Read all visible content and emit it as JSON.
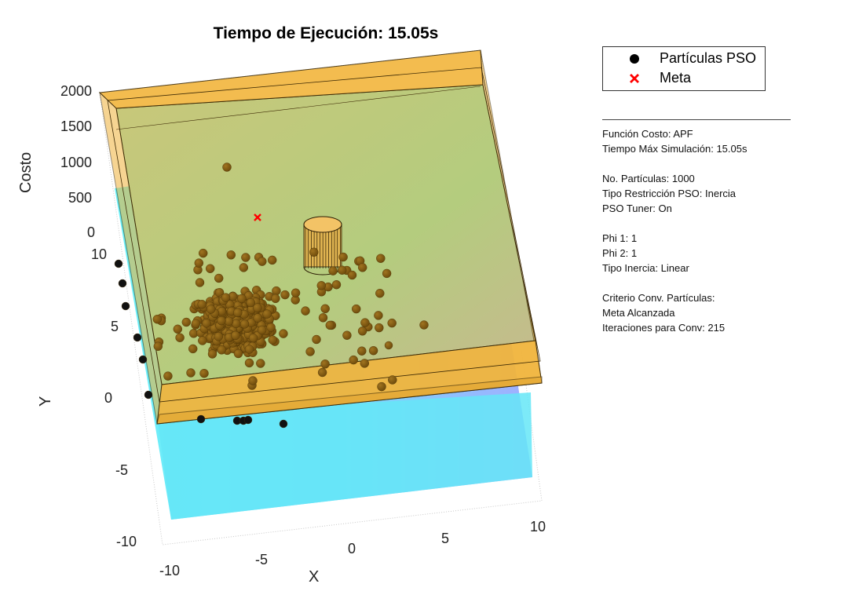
{
  "chart_data": {
    "type": "scatter",
    "title": "Tiempo de Ejecución: 15.05s",
    "xlabel": "X",
    "ylabel": "Y",
    "zlabel": "Costo",
    "x_ticks": [
      "-10",
      "-5",
      "0",
      "5",
      "10"
    ],
    "y_ticks": [
      "-10",
      "-5",
      "0",
      "5",
      "10"
    ],
    "z_ticks": [
      "0",
      "500",
      "1000",
      "1500",
      "2000"
    ],
    "xlim": [
      -10,
      10
    ],
    "ylim": [
      -10,
      10
    ],
    "zlim": [
      0,
      2000
    ],
    "grid": true,
    "legend_position": "top-right-outside",
    "legend": [
      {
        "label": "Partículas PSO",
        "marker": "circle",
        "color": "#000000"
      },
      {
        "label": "Meta",
        "marker": "x",
        "color": "#ff0000"
      }
    ],
    "goal": {
      "x": -2.5,
      "y": 8.8
    },
    "obstacle": {
      "type": "cylinder",
      "x": 0.8,
      "y": 8.0
    },
    "series": [
      {
        "name": "Partículas PSO",
        "count": 1000,
        "color": "#8a5f10"
      }
    ]
  },
  "info_panel": [
    "Función Costo: APF",
    "Tiempo Máx Simulación: 15.05s",
    "",
    "No. Partículas: 1000",
    "Tipo Restricción PSO: Inercia",
    "PSO Tuner: On",
    "",
    "Phi 1: 1",
    "Phi 2: 1",
    "Tipo Inercia: Linear",
    "",
    "Criterio Conv. Partículas:",
    "Meta Alcanzada",
    "Iteraciones para Conv: 215"
  ],
  "colors": {
    "wall": "#f2b53c",
    "floor": "#b7c97a",
    "cost_surface_low": "#5fe9f5",
    "cost_surface_high": "#9aa6ff",
    "particle": "#8a5f10",
    "goal": "#ff0000"
  }
}
